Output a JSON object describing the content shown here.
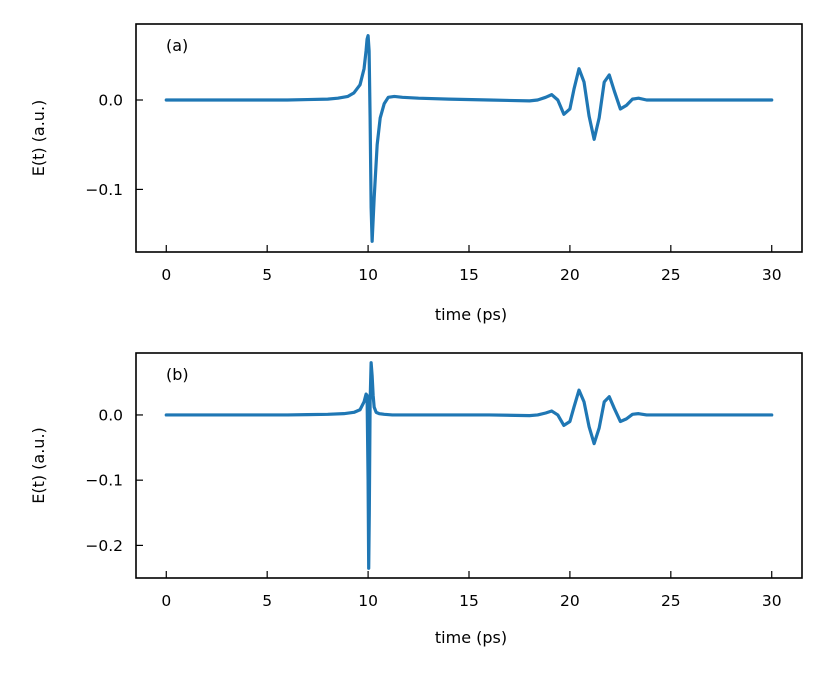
{
  "chart_data": [
    {
      "type": "line",
      "panel_label": "(a)",
      "xlabel": "time (ps)",
      "ylabel": "E(t) (a.u.)",
      "xlim": [
        -1.5,
        31.5
      ],
      "ylim": [
        -0.17,
        0.085
      ],
      "xticks": [
        0,
        5,
        10,
        15,
        20,
        25,
        30
      ],
      "xtick_labels": [
        "0",
        "5",
        "10",
        "15",
        "20",
        "25",
        "30"
      ],
      "yticks": [
        0.0,
        -0.1
      ],
      "ytick_labels": [
        "0.0",
        "−0.1"
      ],
      "grid": false,
      "color": "#1f77b4",
      "series": [
        {
          "x": [
            0,
            2,
            4,
            6,
            7,
            8,
            8.5,
            9,
            9.3,
            9.6,
            9.8,
            9.9,
            9.95,
            10.0,
            10.05,
            10.1,
            10.15,
            10.2,
            10.3,
            10.45,
            10.6,
            10.8,
            11.0,
            11.3,
            11.7,
            12.5,
            14,
            16,
            18,
            18.4,
            18.8,
            19.1,
            19.4,
            19.7,
            20.0,
            20.2,
            20.45,
            20.7,
            20.95,
            21.2,
            21.45,
            21.7,
            21.95,
            22.2,
            22.5,
            22.8,
            23.1,
            23.4,
            23.8,
            24.5,
            26,
            28,
            30
          ],
          "y": [
            0.0,
            0.0,
            0.0,
            0.0,
            0.0005,
            0.001,
            0.002,
            0.004,
            0.008,
            0.017,
            0.035,
            0.055,
            0.068,
            0.072,
            0.055,
            -0.02,
            -0.12,
            -0.158,
            -0.11,
            -0.05,
            -0.02,
            -0.004,
            0.003,
            0.004,
            0.003,
            0.002,
            0.001,
            0.0,
            -0.001,
            0.0,
            0.003,
            0.006,
            0.0,
            -0.016,
            -0.01,
            0.012,
            0.035,
            0.02,
            -0.018,
            -0.044,
            -0.02,
            0.02,
            0.028,
            0.01,
            -0.01,
            -0.006,
            0.001,
            0.002,
            0.0,
            0.0,
            0.0,
            0.0,
            0.0
          ]
        }
      ]
    },
    {
      "type": "line",
      "panel_label": "(b)",
      "xlabel": "time (ps)",
      "ylabel": "E(t) (a.u.)",
      "xlim": [
        -1.5,
        31.5
      ],
      "ylim": [
        -0.25,
        0.095
      ],
      "xticks": [
        0,
        5,
        10,
        15,
        20,
        25,
        30
      ],
      "xtick_labels": [
        "0",
        "5",
        "10",
        "15",
        "20",
        "25",
        "30"
      ],
      "yticks": [
        0.0,
        -0.1,
        -0.2
      ],
      "ytick_labels": [
        "0.0",
        "−0.1",
        "−0.2"
      ],
      "grid": false,
      "color": "#1f77b4",
      "series": [
        {
          "x": [
            0,
            2,
            4,
            6,
            7,
            8,
            8.8,
            9.3,
            9.6,
            9.8,
            9.9,
            9.95,
            10.0,
            10.03,
            10.06,
            10.1,
            10.15,
            10.2,
            10.25,
            10.3,
            10.4,
            10.55,
            10.8,
            11.2,
            12,
            14,
            16,
            18,
            18.4,
            18.8,
            19.1,
            19.4,
            19.7,
            20.0,
            20.2,
            20.45,
            20.7,
            20.95,
            21.2,
            21.45,
            21.7,
            21.95,
            22.2,
            22.5,
            22.8,
            23.1,
            23.4,
            23.8,
            24.5,
            26,
            28,
            30
          ],
          "y": [
            0.0,
            0.0,
            0.0,
            0.0,
            0.0005,
            0.001,
            0.002,
            0.004,
            0.008,
            0.02,
            0.032,
            0.03,
            -0.1,
            -0.235,
            -0.15,
            0.02,
            0.08,
            0.06,
            0.03,
            0.012,
            0.004,
            0.002,
            0.001,
            0.0,
            0.0,
            0.0,
            0.0,
            -0.001,
            0.0,
            0.003,
            0.006,
            0.0,
            -0.016,
            -0.01,
            0.012,
            0.038,
            0.02,
            -0.018,
            -0.044,
            -0.02,
            0.02,
            0.028,
            0.01,
            -0.01,
            -0.006,
            0.001,
            0.002,
            0.0,
            0.0,
            0.0,
            0.0,
            0.0
          ]
        }
      ]
    }
  ]
}
